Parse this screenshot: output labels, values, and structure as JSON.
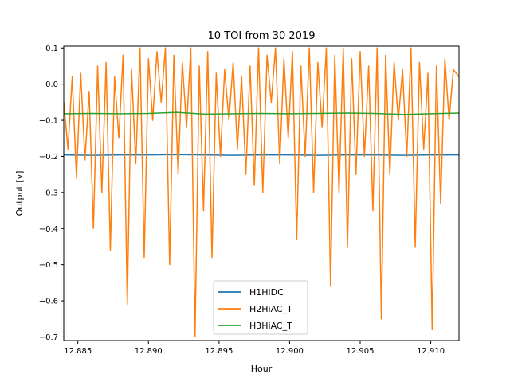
{
  "chart_data": {
    "type": "line",
    "title": "10 TOI from 30 2019",
    "xlabel": "Hour",
    "ylabel": "Output [v]",
    "xlim": [
      12.884,
      12.912
    ],
    "ylim": [
      -0.71,
      0.105
    ],
    "xticks": [
      {
        "value": 12.885,
        "label": "12.885"
      },
      {
        "value": 12.89,
        "label": "12.890"
      },
      {
        "value": 12.895,
        "label": "12.895"
      },
      {
        "value": 12.9,
        "label": "12.900"
      },
      {
        "value": 12.905,
        "label": "12.905"
      },
      {
        "value": 12.91,
        "label": "12.910"
      }
    ],
    "yticks": [
      {
        "value": 0.1,
        "label": "0.1"
      },
      {
        "value": 0.0,
        "label": "0.0"
      },
      {
        "value": -0.1,
        "label": "−0.1"
      },
      {
        "value": -0.2,
        "label": "−0.2"
      },
      {
        "value": -0.3,
        "label": "−0.3"
      },
      {
        "value": -0.4,
        "label": "−0.4"
      },
      {
        "value": -0.5,
        "label": "−0.5"
      },
      {
        "value": -0.6,
        "label": "−0.6"
      },
      {
        "value": -0.7,
        "label": "−0.7"
      }
    ],
    "grid": false,
    "legend_position": "bottom-center",
    "series": [
      {
        "name": "H1HiDC",
        "color": "#1f77b4",
        "x": [
          12.884,
          12.886,
          12.888,
          12.89,
          12.892,
          12.894,
          12.896,
          12.898,
          12.9,
          12.902,
          12.904,
          12.906,
          12.908,
          12.91,
          12.912
        ],
        "y": [
          -0.196,
          -0.197,
          -0.196,
          -0.196,
          -0.195,
          -0.196,
          -0.197,
          -0.196,
          -0.196,
          -0.197,
          -0.196,
          -0.196,
          -0.197,
          -0.196,
          -0.196
        ]
      },
      {
        "name": "H2HiAC_T",
        "color": "#ff7f0e",
        "x": [
          12.884,
          12.8843,
          12.8846,
          12.8849,
          12.8852,
          12.8855,
          12.8858,
          12.8861,
          12.8864,
          12.8867,
          12.887,
          12.8873,
          12.8876,
          12.8879,
          12.8882,
          12.8885,
          12.8888,
          12.8891,
          12.8894,
          12.8897,
          12.89,
          12.8903,
          12.8906,
          12.8909,
          12.8912,
          12.8915,
          12.8918,
          12.8921,
          12.8924,
          12.8927,
          12.893,
          12.8933,
          12.8936,
          12.8939,
          12.8942,
          12.8945,
          12.8948,
          12.8951,
          12.8954,
          12.8957,
          12.896,
          12.8963,
          12.8966,
          12.8969,
          12.8972,
          12.8975,
          12.8978,
          12.8981,
          12.8984,
          12.8987,
          12.899,
          12.8993,
          12.8996,
          12.8999,
          12.9002,
          12.9005,
          12.9008,
          12.9011,
          12.9014,
          12.9017,
          12.902,
          12.9023,
          12.9026,
          12.9029,
          12.9032,
          12.9035,
          12.9038,
          12.9041,
          12.9044,
          12.9047,
          12.905,
          12.9053,
          12.9056,
          12.9059,
          12.9062,
          12.9065,
          12.9068,
          12.9071,
          12.9074,
          12.9077,
          12.908,
          12.9083,
          12.9086,
          12.9089,
          12.9092,
          12.9095,
          12.9098,
          12.9101,
          12.9104,
          12.9107,
          12.911,
          12.9113,
          12.9116,
          12.912
        ],
        "y": [
          -0.05,
          -0.18,
          0.02,
          -0.26,
          0.03,
          -0.21,
          -0.02,
          -0.4,
          0.05,
          -0.3,
          0.06,
          -0.46,
          0.02,
          -0.15,
          0.08,
          -0.61,
          0.04,
          -0.22,
          0.1,
          -0.48,
          0.07,
          -0.1,
          0.09,
          -0.05,
          0.1,
          -0.5,
          0.08,
          -0.25,
          0.06,
          -0.12,
          0.1,
          -0.7,
          0.05,
          -0.35,
          0.09,
          -0.48,
          0.03,
          -0.2,
          0.04,
          -0.1,
          0.06,
          -0.18,
          0.02,
          -0.25,
          0.05,
          -0.28,
          0.1,
          -0.3,
          0.08,
          -0.05,
          0.1,
          -0.22,
          0.07,
          -0.15,
          0.09,
          -0.43,
          0.05,
          -0.2,
          0.1,
          -0.3,
          0.06,
          -0.12,
          0.1,
          -0.56,
          0.08,
          -0.3,
          0.1,
          -0.45,
          0.07,
          -0.25,
          0.09,
          -0.2,
          0.05,
          -0.35,
          0.1,
          -0.65,
          0.08,
          -0.25,
          0.06,
          -0.1,
          0.04,
          -0.2,
          0.1,
          -0.45,
          0.06,
          -0.18,
          0.03,
          -0.68,
          0.05,
          -0.33,
          0.07,
          -0.1,
          0.04,
          0.02
        ]
      },
      {
        "name": "H3HiAC_T",
        "color": "#2ca02c",
        "x": [
          12.884,
          12.886,
          12.888,
          12.89,
          12.892,
          12.894,
          12.896,
          12.898,
          12.9,
          12.902,
          12.904,
          12.906,
          12.908,
          12.91,
          12.912
        ],
        "y": [
          -0.082,
          -0.081,
          -0.082,
          -0.081,
          -0.078,
          -0.083,
          -0.082,
          -0.081,
          -0.082,
          -0.081,
          -0.08,
          -0.081,
          -0.084,
          -0.082,
          -0.08
        ]
      }
    ]
  }
}
